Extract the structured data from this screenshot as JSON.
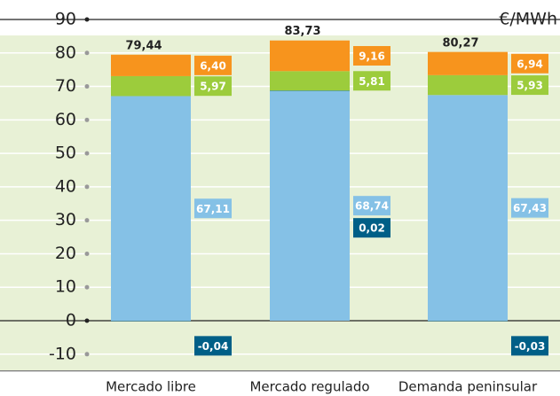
{
  "chart_data": {
    "type": "stacked_bar",
    "unit_label": "€/MWh",
    "categories": [
      "Mercado libre",
      "Mercado regulado",
      "Demanda peninsular"
    ],
    "series": [
      {
        "color": "#85c1e6",
        "values": [
          67.11,
          68.74,
          67.43
        ],
        "value_labels": [
          "67,11",
          "68,74",
          "67,43"
        ]
      },
      {
        "color": "#005f87",
        "values": [
          -0.04,
          0.02,
          -0.03
        ],
        "value_labels": [
          "-0,04",
          "0,02",
          "-0,03"
        ]
      },
      {
        "color": "#9ccc3c",
        "values": [
          5.97,
          5.81,
          5.93
        ],
        "value_labels": [
          "5,97",
          "5,81",
          "5,93"
        ]
      },
      {
        "color": "#f7941d",
        "values": [
          6.4,
          9.16,
          6.94
        ],
        "value_labels": [
          "6,40",
          "9,16",
          "6,94"
        ]
      }
    ],
    "totals": [
      79.44,
      83.73,
      80.27
    ],
    "total_labels": [
      "79,44",
      "83,73",
      "80,27"
    ],
    "ylim": [
      -15,
      90
    ],
    "yticks": [
      -10,
      0,
      10,
      20,
      30,
      40,
      50,
      60,
      70,
      80,
      90
    ],
    "grid": true
  }
}
